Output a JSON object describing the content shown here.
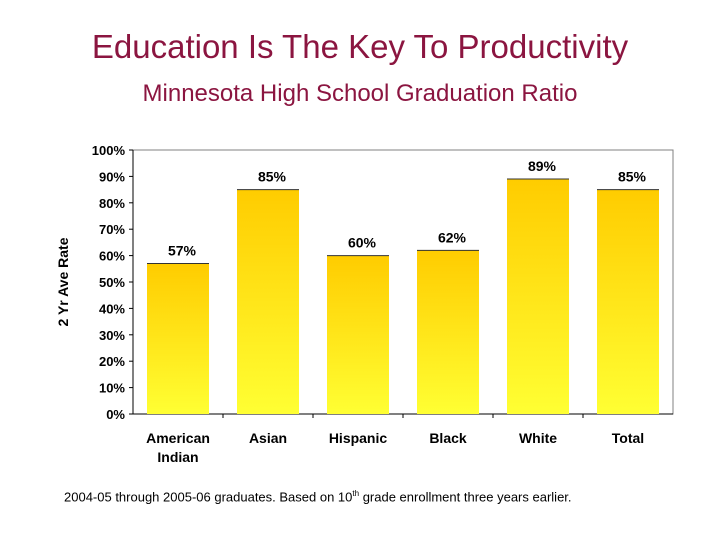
{
  "slide": {
    "title": "Education Is The Key To Productivity",
    "footnote_pre": "2004-05 through 2005-06 graduates. Based on 10",
    "footnote_sup": "th",
    "footnote_post": " grade enrollment three years earlier."
  },
  "colors": {
    "title": "#8B1540",
    "bar_top": "#FFCC00",
    "bar_bottom": "#FFFF33",
    "gridline": "#000000"
  },
  "chart_data": {
    "type": "bar",
    "title": "Minnesota High School Graduation Ratio",
    "ylabel": "2 Yr Ave Rate",
    "xlabel": "",
    "categories": [
      [
        "American",
        "Indian"
      ],
      [
        "Asian"
      ],
      [
        "Hispanic"
      ],
      [
        "Black"
      ],
      [
        "White"
      ],
      [
        "Total"
      ]
    ],
    "values": [
      57,
      85,
      60,
      62,
      89,
      85
    ],
    "data_labels": [
      "57%",
      "85%",
      "60%",
      "62%",
      "89%",
      "85%"
    ],
    "ylim": [
      0,
      100
    ],
    "yticks": [
      "0%",
      "10%",
      "20%",
      "30%",
      "40%",
      "50%",
      "60%",
      "70%",
      "80%",
      "90%",
      "100%"
    ],
    "grid": false,
    "legend": "none"
  }
}
